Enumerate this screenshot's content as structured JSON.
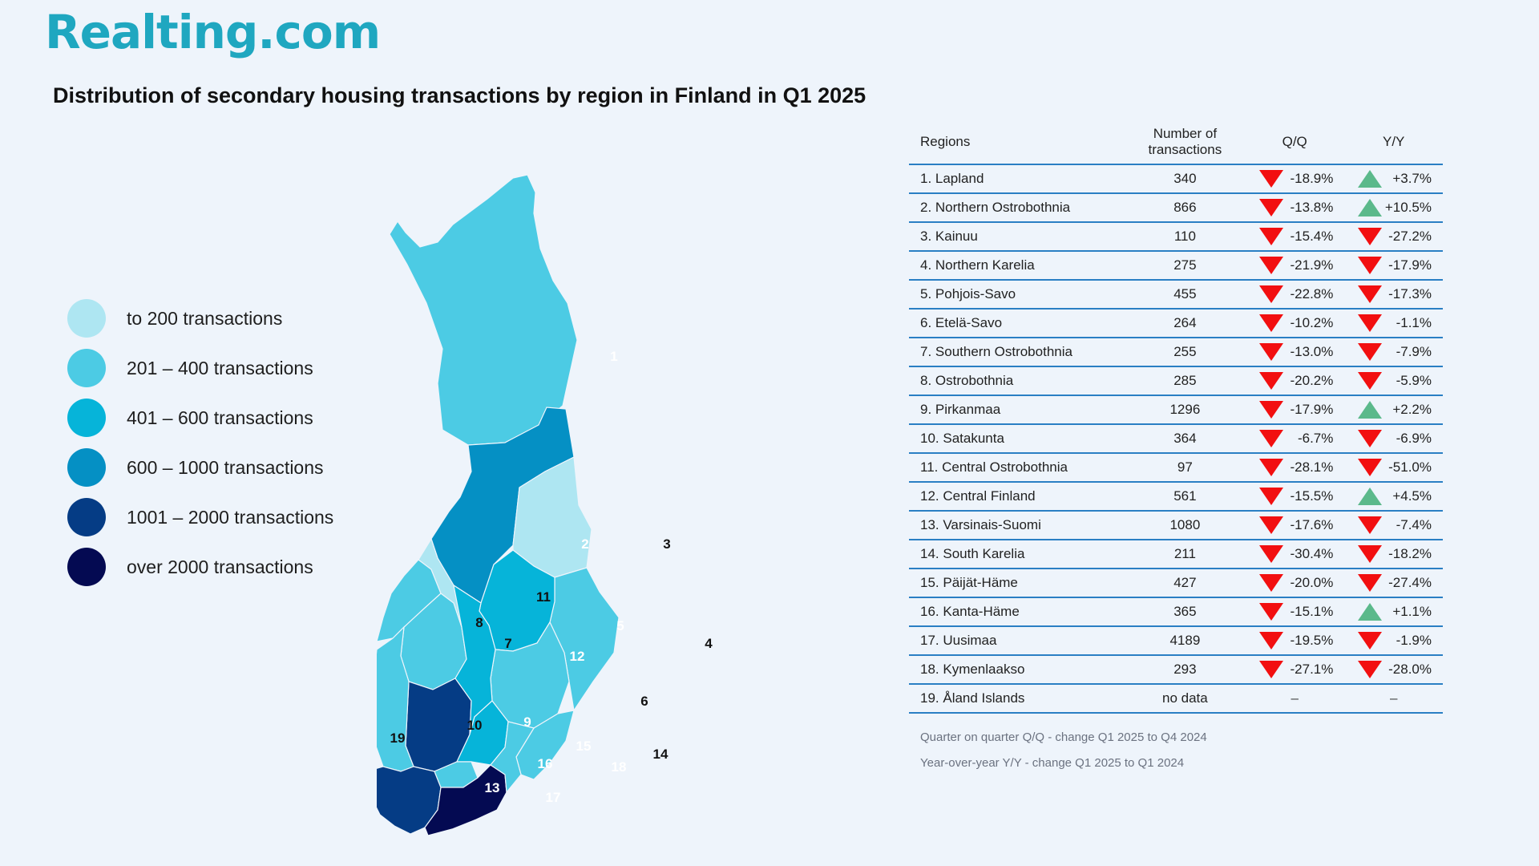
{
  "brand": "Realting.com",
  "title": "Distribution of secondary housing transactions by region in Finland in Q1 2025",
  "legend": [
    {
      "label": "to 200 transactions",
      "color": "#aee6f2"
    },
    {
      "label": "201 – 400 transactions",
      "color": "#4ccbe4"
    },
    {
      "label": "401 – 600 transactions",
      "color": "#06b4d9"
    },
    {
      "label": "600 – 1000 transactions",
      "color": "#0590c4"
    },
    {
      "label": "1001 – 2000 transactions",
      "color": "#053c85"
    },
    {
      "label": "over 2000 transactions",
      "color": "#040a52"
    }
  ],
  "colors": {
    "up": "#5bb98b",
    "down": "#f20f10",
    "rule": "#2a7fc4",
    "no_data": "#b8bcc2",
    "pointer": "#e8282a"
  },
  "table": {
    "headers": {
      "region": "Regions",
      "count_line1": "Number of",
      "count_line2": "transactions",
      "qq": "Q/Q",
      "yy": "Y/Y"
    },
    "rows": [
      {
        "region": "1. Lapland",
        "count": "340",
        "qq": "-18.9%",
        "qq_dir": "down",
        "yy": "+3.7%",
        "yy_dir": "up"
      },
      {
        "region": "2. Northern Ostrobothnia",
        "count": "866",
        "qq": "-13.8%",
        "qq_dir": "down",
        "yy": "+10.5%",
        "yy_dir": "up"
      },
      {
        "region": "3. Kainuu",
        "count": "110",
        "qq": "-15.4%",
        "qq_dir": "down",
        "yy": "-27.2%",
        "yy_dir": "down"
      },
      {
        "region": "4. Northern Karelia",
        "count": "275",
        "qq": "-21.9%",
        "qq_dir": "down",
        "yy": "-17.9%",
        "yy_dir": "down"
      },
      {
        "region": "5. Pohjois-Savo",
        "count": "455",
        "qq": "-22.8%",
        "qq_dir": "down",
        "yy": "-17.3%",
        "yy_dir": "down"
      },
      {
        "region": "6. Etelä-Savo",
        "count": "264",
        "qq": "-10.2%",
        "qq_dir": "down",
        "yy": "-1.1%",
        "yy_dir": "down"
      },
      {
        "region": "7. Southern Ostrobothnia",
        "count": "255",
        "qq": "-13.0%",
        "qq_dir": "down",
        "yy": "-7.9%",
        "yy_dir": "down"
      },
      {
        "region": "8. Ostrobothnia",
        "count": "285",
        "qq": "-20.2%",
        "qq_dir": "down",
        "yy": "-5.9%",
        "yy_dir": "down"
      },
      {
        "region": "9. Pirkanmaa",
        "count": "1296",
        "qq": "-17.9%",
        "qq_dir": "down",
        "yy": "+2.2%",
        "yy_dir": "up"
      },
      {
        "region": "10. Satakunta",
        "count": "364",
        "qq": "-6.7%",
        "qq_dir": "down",
        "yy": "-6.9%",
        "yy_dir": "down"
      },
      {
        "region": "11. Central Ostrobothnia",
        "count": "97",
        "qq": "-28.1%",
        "qq_dir": "down",
        "yy": "-51.0%",
        "yy_dir": "down"
      },
      {
        "region": "12. Central Finland",
        "count": "561",
        "qq": "-15.5%",
        "qq_dir": "down",
        "yy": "+4.5%",
        "yy_dir": "up"
      },
      {
        "region": "13. Varsinais-Suomi",
        "count": "1080",
        "qq": "-17.6%",
        "qq_dir": "down",
        "yy": "-7.4%",
        "yy_dir": "down"
      },
      {
        "region": "14. South Karelia",
        "count": "211",
        "qq": "-30.4%",
        "qq_dir": "down",
        "yy": "-18.2%",
        "yy_dir": "down"
      },
      {
        "region": "15. Päijät-Häme",
        "count": "427",
        "qq": "-20.0%",
        "qq_dir": "down",
        "yy": "-27.4%",
        "yy_dir": "down"
      },
      {
        "region": "16. Kanta-Häme",
        "count": "365",
        "qq": "-15.1%",
        "qq_dir": "down",
        "yy": "+1.1%",
        "yy_dir": "up"
      },
      {
        "region": "17. Uusimaa",
        "count": "4189",
        "qq": "-19.5%",
        "qq_dir": "down",
        "yy": "-1.9%",
        "yy_dir": "down"
      },
      {
        "region": "18. Kymenlaakso",
        "count": "293",
        "qq": "-27.1%",
        "qq_dir": "down",
        "yy": "-28.0%",
        "yy_dir": "down"
      },
      {
        "region": "19. Åland Islands",
        "count": "no data",
        "qq": "–",
        "qq_dir": "none",
        "yy": "–",
        "yy_dir": "none"
      }
    ],
    "notes": [
      "Quarter on quarter Q/Q  - change Q1 2025 to Q4 2024",
      "Year-over-year Y/Y - change Q1 2025 to Q1 2024"
    ]
  },
  "map": {
    "regions": [
      {
        "num": "1",
        "class": 1
      },
      {
        "num": "2",
        "class": 3
      },
      {
        "num": "3",
        "class": 0
      },
      {
        "num": "4",
        "class": 1
      },
      {
        "num": "5",
        "class": 2
      },
      {
        "num": "6",
        "class": 1
      },
      {
        "num": "7",
        "class": 1
      },
      {
        "num": "8",
        "class": 1
      },
      {
        "num": "9",
        "class": 4
      },
      {
        "num": "10",
        "class": 1
      },
      {
        "num": "11",
        "class": 0
      },
      {
        "num": "12",
        "class": 2
      },
      {
        "num": "13",
        "class": 4
      },
      {
        "num": "14",
        "class": 1
      },
      {
        "num": "15",
        "class": 2
      },
      {
        "num": "16",
        "class": 1
      },
      {
        "num": "17",
        "class": 5
      },
      {
        "num": "18",
        "class": 1
      },
      {
        "num": "19",
        "class": -1
      }
    ]
  }
}
